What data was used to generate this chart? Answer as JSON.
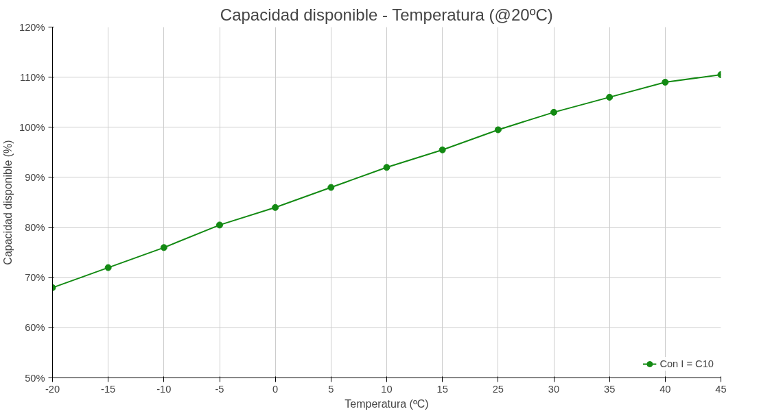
{
  "chart_data": {
    "type": "line",
    "title": "Capacidad disponible - Temperatura (@20ºC)",
    "xlabel": "Temperatura (ºC)",
    "ylabel": "Capacidad disponible (%)",
    "categories": [
      "-20",
      "-15",
      "-10",
      "-5",
      "0",
      "5",
      "10",
      "15",
      "25",
      "30",
      "35",
      "40",
      "45"
    ],
    "series": [
      {
        "name": "Con I = C10",
        "color": "#138a13",
        "values": [
          68,
          72,
          76,
          80.5,
          84,
          88,
          92,
          95.5,
          99.5,
          103,
          106,
          109,
          110.5
        ]
      }
    ],
    "ylim": [
      50,
      120
    ],
    "yticks": [
      {
        "value": 50,
        "label": "50%"
      },
      {
        "value": 60,
        "label": "60%"
      },
      {
        "value": 70,
        "label": "70%"
      },
      {
        "value": 80,
        "label": "80%"
      },
      {
        "value": 90,
        "label": "90%"
      },
      {
        "value": 100,
        "label": "100%"
      },
      {
        "value": 110,
        "label": "110%"
      },
      {
        "value": 120,
        "label": "120%"
      }
    ],
    "grid": true,
    "legend": "bottom right",
    "marker": "circle",
    "line_style": "solid"
  }
}
